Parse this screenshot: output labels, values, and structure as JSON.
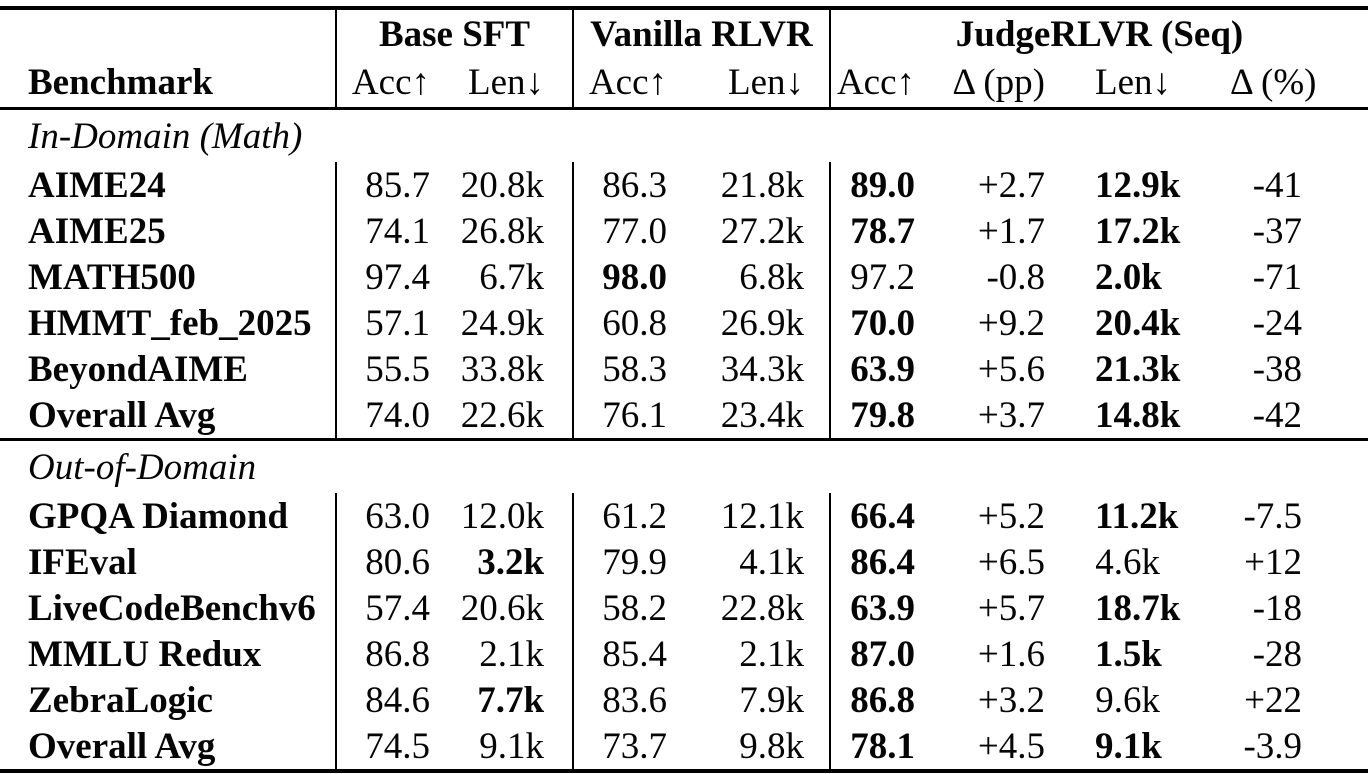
{
  "table": {
    "benchmark_header": "Benchmark",
    "groups": [
      {
        "label": "Base SFT"
      },
      {
        "label": "Vanilla RLVR"
      },
      {
        "label": "JudgeRLVR (Seq)"
      }
    ],
    "col_headers": [
      "Acc↑",
      "Len↓",
      "Acc↑",
      "Len↓",
      "Acc↑",
      "Δ (pp)",
      "Len↓",
      "Δ (%)"
    ],
    "sections": [
      {
        "label": "In-Domain (Math)",
        "rows": [
          {
            "name": "AIME24",
            "cells": [
              {
                "v": "85.7"
              },
              {
                "v": "20.8k"
              },
              {
                "v": "86.3"
              },
              {
                "v": "21.8k"
              },
              {
                "v": "89.0",
                "b": true
              },
              {
                "v": "+2.7"
              },
              {
                "v": "12.9k",
                "b": true
              },
              {
                "v": "-41"
              }
            ]
          },
          {
            "name": "AIME25",
            "cells": [
              {
                "v": "74.1"
              },
              {
                "v": "26.8k"
              },
              {
                "v": "77.0"
              },
              {
                "v": "27.2k"
              },
              {
                "v": "78.7",
                "b": true
              },
              {
                "v": "+1.7"
              },
              {
                "v": "17.2k",
                "b": true
              },
              {
                "v": "-37"
              }
            ]
          },
          {
            "name": "MATH500",
            "cells": [
              {
                "v": "97.4"
              },
              {
                "v": "6.7k"
              },
              {
                "v": "98.0",
                "b": true
              },
              {
                "v": "6.8k"
              },
              {
                "v": "97.2"
              },
              {
                "v": "-0.8"
              },
              {
                "v": "2.0k",
                "b": true
              },
              {
                "v": "-71"
              }
            ]
          },
          {
            "name": "HMMT_feb_2025",
            "cells": [
              {
                "v": "57.1"
              },
              {
                "v": "24.9k"
              },
              {
                "v": "60.8"
              },
              {
                "v": "26.9k"
              },
              {
                "v": "70.0",
                "b": true
              },
              {
                "v": "+9.2"
              },
              {
                "v": "20.4k",
                "b": true
              },
              {
                "v": "-24"
              }
            ]
          },
          {
            "name": "BeyondAIME",
            "cells": [
              {
                "v": "55.5"
              },
              {
                "v": "33.8k"
              },
              {
                "v": "58.3"
              },
              {
                "v": "34.3k"
              },
              {
                "v": "63.9",
                "b": true
              },
              {
                "v": "+5.6"
              },
              {
                "v": "21.3k",
                "b": true
              },
              {
                "v": "-38"
              }
            ]
          },
          {
            "name": "Overall Avg",
            "cells": [
              {
                "v": "74.0"
              },
              {
                "v": "22.6k"
              },
              {
                "v": "76.1"
              },
              {
                "v": "23.4k"
              },
              {
                "v": "79.8",
                "b": true
              },
              {
                "v": "+3.7"
              },
              {
                "v": "14.8k",
                "b": true
              },
              {
                "v": "-42"
              }
            ]
          }
        ]
      },
      {
        "label": "Out-of-Domain",
        "rows": [
          {
            "name": "GPQA Diamond",
            "cells": [
              {
                "v": "63.0"
              },
              {
                "v": "12.0k"
              },
              {
                "v": "61.2"
              },
              {
                "v": "12.1k"
              },
              {
                "v": "66.4",
                "b": true
              },
              {
                "v": "+5.2"
              },
              {
                "v": "11.2k",
                "b": true
              },
              {
                "v": "-7.5"
              }
            ]
          },
          {
            "name": "IFEval",
            "cells": [
              {
                "v": "80.6"
              },
              {
                "v": "3.2k",
                "b": true
              },
              {
                "v": "79.9"
              },
              {
                "v": "4.1k"
              },
              {
                "v": "86.4",
                "b": true
              },
              {
                "v": "+6.5"
              },
              {
                "v": "4.6k"
              },
              {
                "v": "+12"
              }
            ]
          },
          {
            "name": "LiveCodeBenchv6",
            "cells": [
              {
                "v": "57.4"
              },
              {
                "v": "20.6k"
              },
              {
                "v": "58.2"
              },
              {
                "v": "22.8k"
              },
              {
                "v": "63.9",
                "b": true
              },
              {
                "v": "+5.7"
              },
              {
                "v": "18.7k",
                "b": true
              },
              {
                "v": "-18"
              }
            ]
          },
          {
            "name": "MMLU Redux",
            "cells": [
              {
                "v": "86.8"
              },
              {
                "v": "2.1k"
              },
              {
                "v": "85.4"
              },
              {
                "v": "2.1k"
              },
              {
                "v": "87.0",
                "b": true
              },
              {
                "v": "+1.6"
              },
              {
                "v": "1.5k",
                "b": true
              },
              {
                "v": "-28"
              }
            ]
          },
          {
            "name": "ZebraLogic",
            "cells": [
              {
                "v": "84.6"
              },
              {
                "v": "7.7k",
                "b": true
              },
              {
                "v": "83.6"
              },
              {
                "v": "7.9k"
              },
              {
                "v": "86.8",
                "b": true
              },
              {
                "v": "+3.2"
              },
              {
                "v": "9.6k"
              },
              {
                "v": "+22"
              }
            ]
          },
          {
            "name": "Overall Avg",
            "cells": [
              {
                "v": "74.5"
              },
              {
                "v": "9.1k"
              },
              {
                "v": "73.7"
              },
              {
                "v": "9.8k"
              },
              {
                "v": "78.1",
                "b": true
              },
              {
                "v": "+4.5"
              },
              {
                "v": "9.1k",
                "b": true
              },
              {
                "v": "-3.9"
              }
            ]
          }
        ]
      }
    ]
  }
}
